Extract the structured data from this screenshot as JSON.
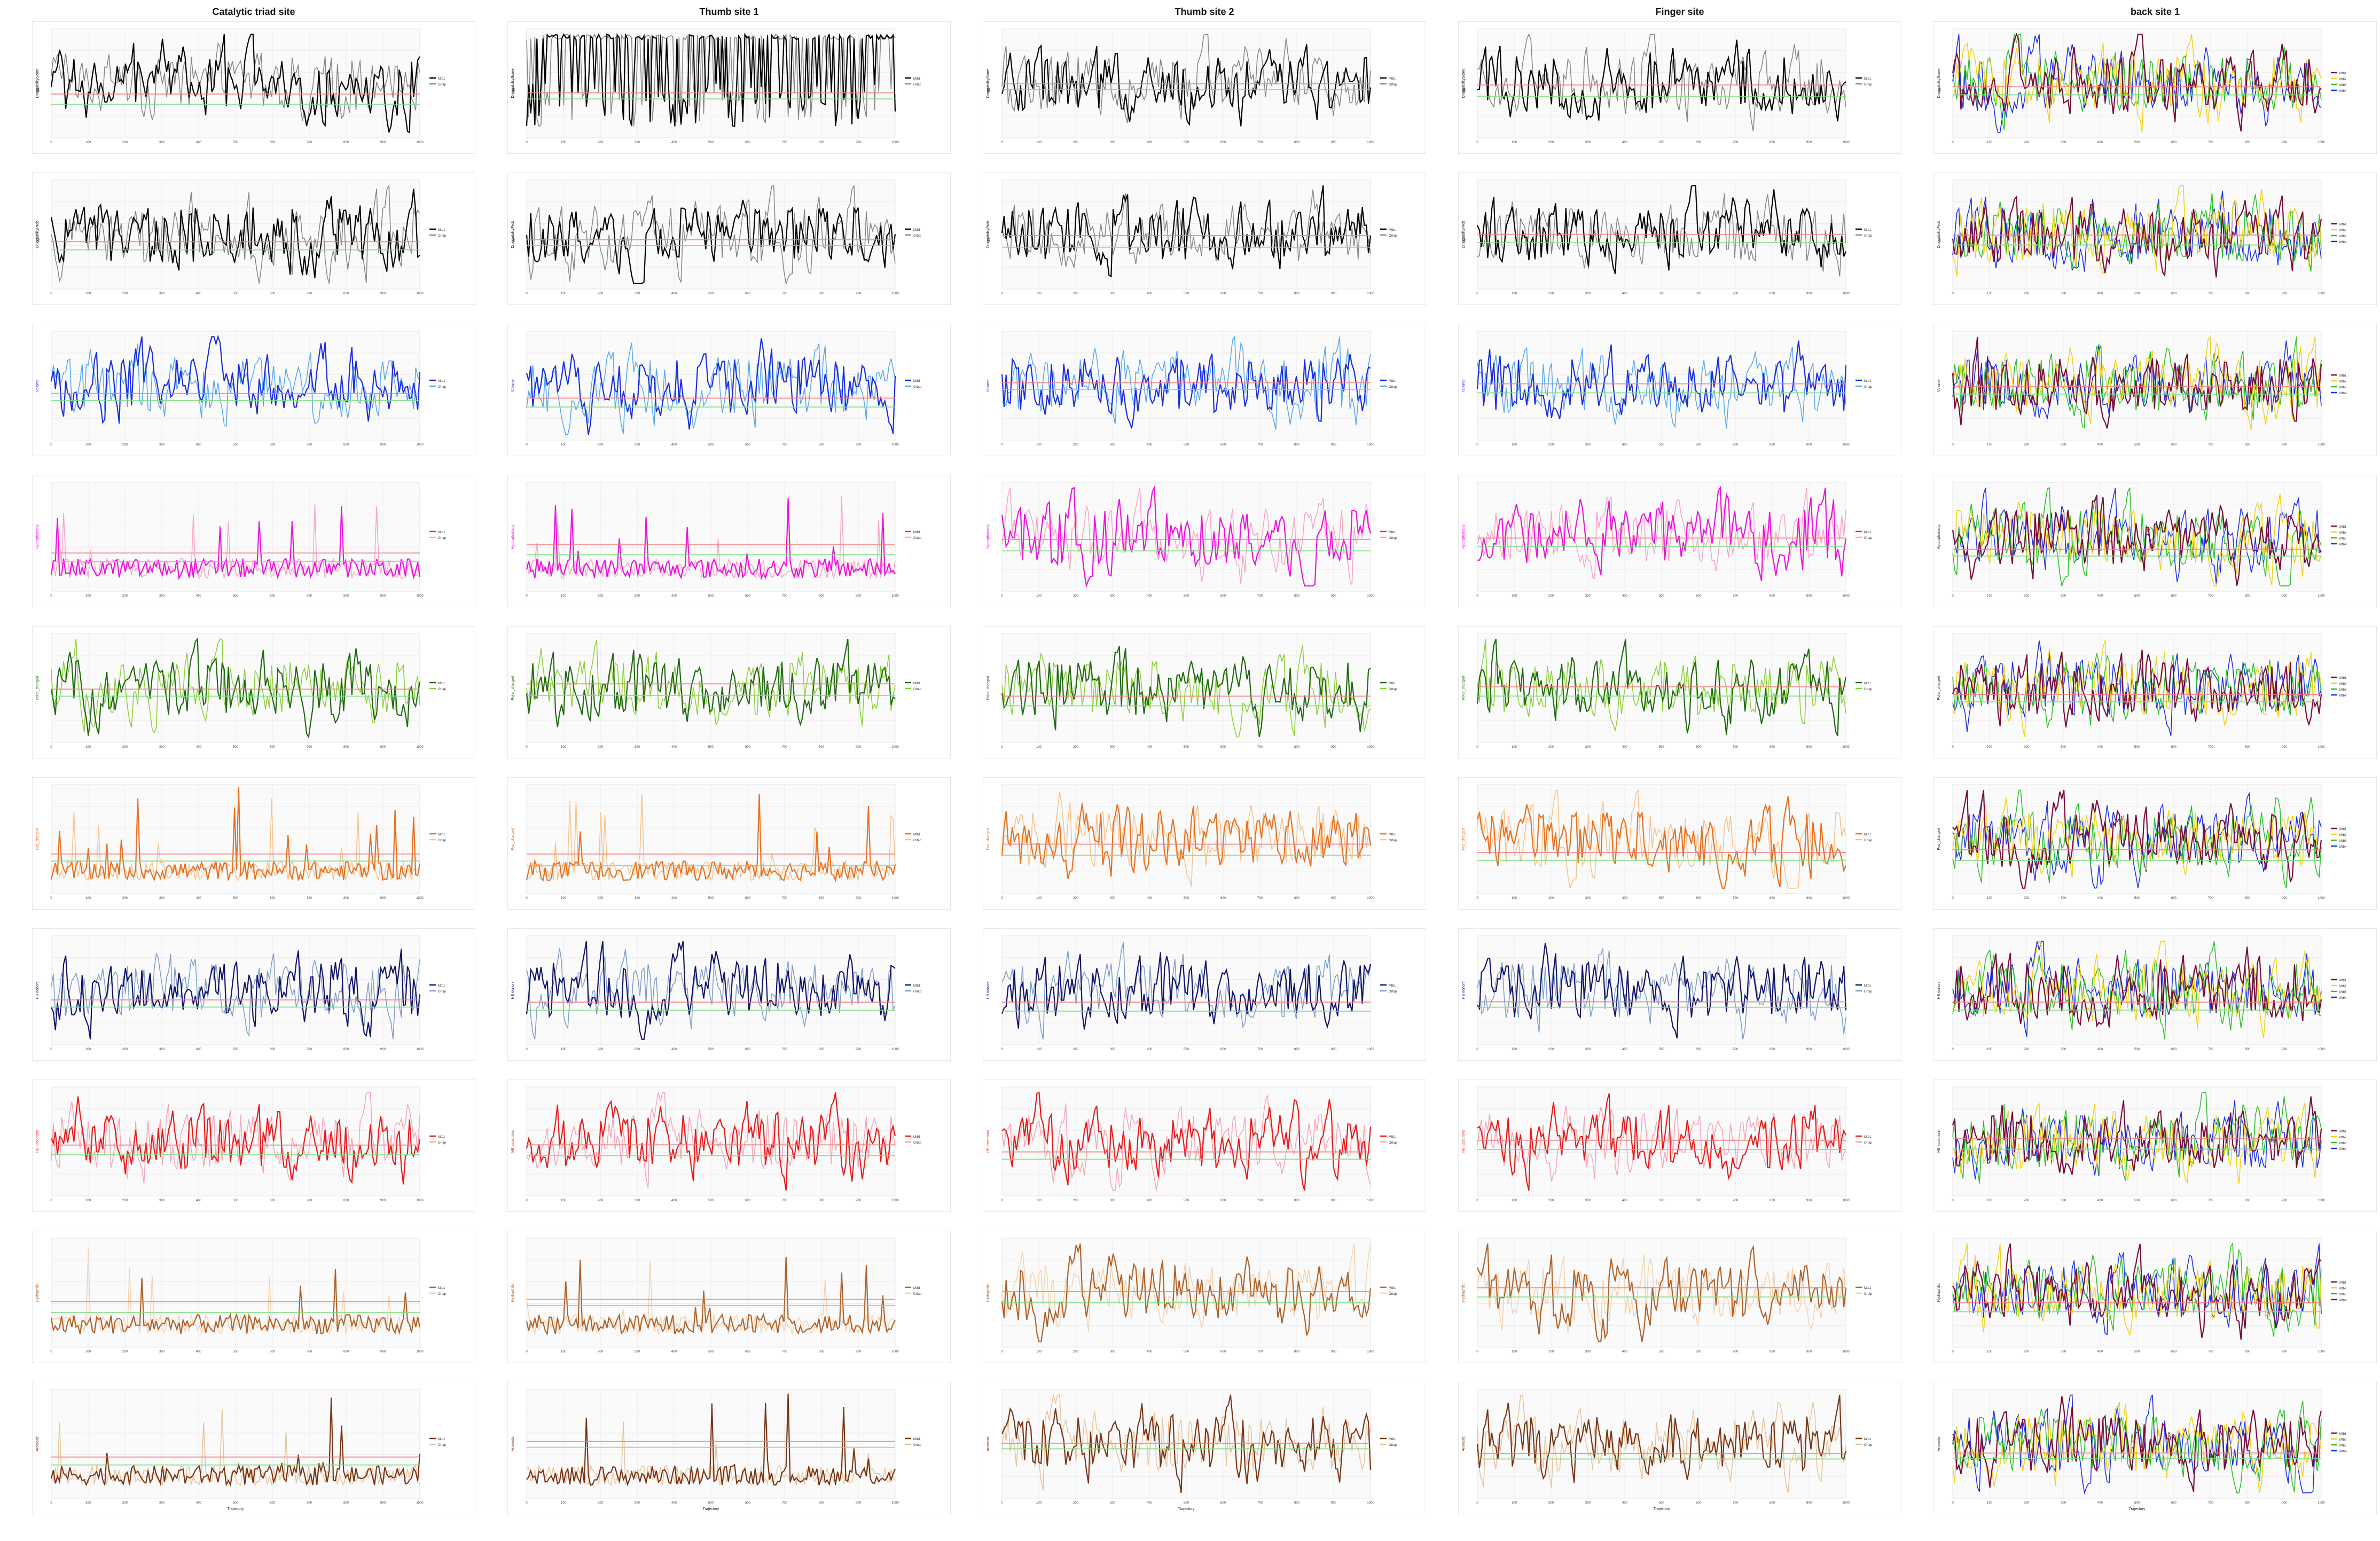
{
  "columns": [
    {
      "title": "Catalytic triad site",
      "legend": [
        "Mtb1",
        "Ortap"
      ]
    },
    {
      "title": "Thumb site 1",
      "legend": [
        "Mtb1",
        "Ortap"
      ]
    },
    {
      "title": "Thumb site 2",
      "legend": [
        "Mtb1",
        "Ortap"
      ]
    },
    {
      "title": "Finger site",
      "legend": [
        "Mtb1",
        "Ortap"
      ]
    },
    {
      "title": "back site 1",
      "legend": [
        "Mtb1",
        "Mtb2",
        "Mtb3",
        "Mtb4"
      ]
    }
  ],
  "rows": [
    {
      "ylabel": "DruggabilityScore",
      "colors": [
        "#000000",
        "#888888"
      ]
    },
    {
      "ylabel": "DruggabilityProb",
      "colors": [
        "#000000",
        "#888888"
      ]
    },
    {
      "ylabel": "Volume",
      "colors": [
        "#1a2ee0",
        "#5aa8f0"
      ]
    },
    {
      "ylabel": "Hydrophobicity",
      "colors": [
        "#ee11dd",
        "#f7a6c8"
      ]
    },
    {
      "ylabel": "Polar_charged",
      "colors": [
        "#1f6b10",
        "#8ccf3a"
      ]
    },
    {
      "ylabel": "Pos_charged",
      "colors": [
        "#e8701f",
        "#f7c28c"
      ]
    },
    {
      "ylabel": "HB donors",
      "colors": [
        "#14146b",
        "#7f9fc8"
      ]
    },
    {
      "ylabel": "HB acceptors",
      "colors": [
        "#e81a1a",
        "#f5a6b6"
      ]
    },
    {
      "ylabel": "Hydrophilic",
      "colors": [
        "#b0622a",
        "#f3d2b0"
      ]
    },
    {
      "ylabel": "Aromatic",
      "colors": [
        "#7a3414",
        "#e8c49c"
      ]
    }
  ],
  "xlabel": "Trajectory",
  "ref_colors": {
    "red": "#f08080",
    "green": "#7ddd7d"
  },
  "multi_colors": [
    "#7a0c3a",
    "#f2d21a",
    "#2ec02e",
    "#1c30e8"
  ],
  "chart_data": {
    "type": "line",
    "note_rows": 10,
    "x": [
      0,
      100,
      200,
      300,
      400,
      500,
      600,
      700,
      800,
      900,
      1000
    ],
    "xlim": [
      0,
      1000
    ],
    "series_count_per_panel": {
      "pair_columns": 2,
      "back_site_1": 4
    }
  }
}
